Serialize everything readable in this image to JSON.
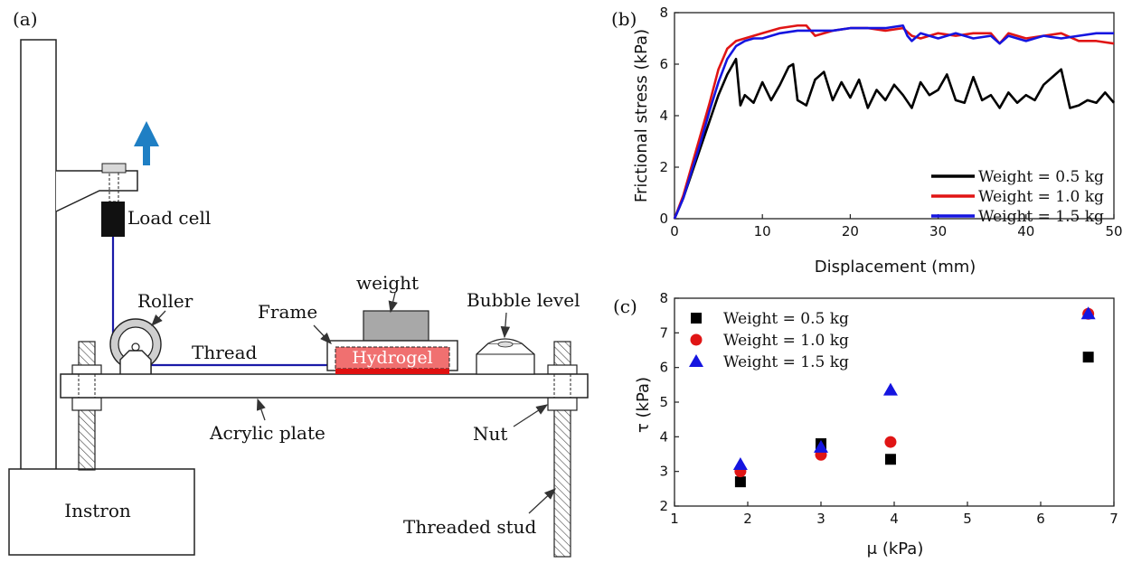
{
  "panel_labels": {
    "a": "(a)",
    "b": "(b)",
    "c": "(c)"
  },
  "diagram": {
    "instron": "Instron",
    "load_cell": "Load cell",
    "roller": "Roller",
    "thread": "Thread",
    "frame": "Frame",
    "weight": "weight",
    "hydrogel": "Hydrogel",
    "bubble_level": "Bubble level",
    "acrylic_plate": "Acrylic plate",
    "nut": "Nut",
    "threaded_stud": "Threaded stud",
    "colors": {
      "arrow": "#1f7fc4",
      "thread": "#1a1aa8",
      "hydrogel": "#f07070",
      "hydrogel_base": "#e01010",
      "weight": "#a8a8a8"
    }
  },
  "chart_data": [
    {
      "type": "line",
      "panel": "(b)",
      "xlabel": "Displacement (mm)",
      "ylabel": "Frictional stress (kPa)",
      "xlim": [
        0,
        50
      ],
      "ylim": [
        0,
        8
      ],
      "xticks": [
        0,
        10,
        20,
        30,
        40,
        50
      ],
      "yticks": [
        0,
        2,
        4,
        6,
        8
      ],
      "legend_position": "bottom-right",
      "series": [
        {
          "name": "Weight = 0.5 kg",
          "color": "#000000",
          "x": [
            0,
            1,
            2,
            3,
            4,
            5,
            6,
            7,
            7.5,
            8,
            9,
            10,
            11,
            12,
            13,
            13.5,
            14,
            15,
            16,
            17,
            18,
            19,
            20,
            21,
            22,
            23,
            24,
            25,
            26,
            27,
            28,
            29,
            30,
            31,
            32,
            33,
            34,
            35,
            36,
            37,
            38,
            39,
            40,
            41,
            42,
            43,
            44,
            45,
            46,
            47,
            48,
            49,
            50
          ],
          "y": [
            0,
            0.8,
            1.8,
            2.8,
            3.8,
            4.8,
            5.6,
            6.2,
            4.4,
            4.8,
            4.5,
            5.3,
            4.6,
            5.2,
            5.9,
            6.0,
            4.6,
            4.4,
            5.4,
            5.7,
            4.6,
            5.3,
            4.7,
            5.4,
            4.3,
            5.0,
            4.6,
            5.2,
            4.8,
            4.3,
            5.3,
            4.8,
            5.0,
            5.6,
            4.6,
            4.5,
            5.5,
            4.6,
            4.8,
            4.3,
            4.9,
            4.5,
            4.8,
            4.6,
            5.2,
            5.5,
            5.8,
            4.3,
            4.4,
            4.6,
            4.5,
            4.9,
            4.5
          ]
        },
        {
          "name": "Weight = 1.0 kg",
          "color": "#e01515",
          "x": [
            0,
            1,
            2,
            3,
            4,
            5,
            6,
            7,
            8,
            9,
            10,
            12,
            14,
            15,
            16,
            18,
            20,
            22,
            24,
            26,
            27,
            28,
            30,
            32,
            34,
            36,
            37,
            38,
            40,
            42,
            44,
            46,
            48,
            50
          ],
          "y": [
            0,
            0.9,
            2.1,
            3.3,
            4.5,
            5.8,
            6.6,
            6.9,
            7.0,
            7.1,
            7.2,
            7.4,
            7.5,
            7.5,
            7.1,
            7.3,
            7.4,
            7.4,
            7.3,
            7.4,
            7.1,
            7.0,
            7.2,
            7.1,
            7.2,
            7.2,
            6.8,
            7.2,
            7.0,
            7.1,
            7.2,
            6.9,
            6.9,
            6.8
          ]
        },
        {
          "name": "Weight = 1.5 kg",
          "color": "#1515e0",
          "x": [
            0,
            1,
            2,
            3,
            4,
            5,
            6,
            7,
            8,
            9,
            10,
            12,
            14,
            16,
            18,
            20,
            22,
            24,
            26,
            26.5,
            27,
            28,
            30,
            32,
            34,
            36,
            37,
            38,
            40,
            42,
            44,
            46,
            48,
            50
          ],
          "y": [
            0,
            0.8,
            1.9,
            3.0,
            4.2,
            5.3,
            6.2,
            6.7,
            6.9,
            7.0,
            7.0,
            7.2,
            7.3,
            7.3,
            7.3,
            7.4,
            7.4,
            7.4,
            7.5,
            7.1,
            6.9,
            7.2,
            7.0,
            7.2,
            7.0,
            7.1,
            6.8,
            7.1,
            6.9,
            7.1,
            7.0,
            7.1,
            7.2,
            7.2
          ]
        }
      ]
    },
    {
      "type": "scatter",
      "panel": "(c)",
      "xlabel": "μ (kPa)",
      "ylabel": "τ (kPa)",
      "xlim": [
        1,
        7
      ],
      "ylim": [
        2,
        8
      ],
      "xticks": [
        1,
        2,
        3,
        4,
        5,
        6,
        7
      ],
      "yticks": [
        2,
        3,
        4,
        5,
        6,
        7,
        8
      ],
      "legend_position": "top-left",
      "series": [
        {
          "name": "Weight = 0.5 kg",
          "marker": "square",
          "color": "#000000",
          "x": [
            1.9,
            3.0,
            3.95,
            6.65
          ],
          "y": [
            2.7,
            3.8,
            3.35,
            6.3
          ]
        },
        {
          "name": "Weight = 1.0 kg",
          "marker": "circle",
          "color": "#e01515",
          "x": [
            1.9,
            3.0,
            3.95,
            6.65
          ],
          "y": [
            3.0,
            3.48,
            3.85,
            7.55
          ]
        },
        {
          "name": "Weight = 1.5 kg",
          "marker": "triangle",
          "color": "#1515e0",
          "x": [
            1.9,
            3.0,
            3.95,
            6.65
          ],
          "y": [
            3.2,
            3.7,
            5.35,
            7.55
          ]
        }
      ]
    }
  ]
}
